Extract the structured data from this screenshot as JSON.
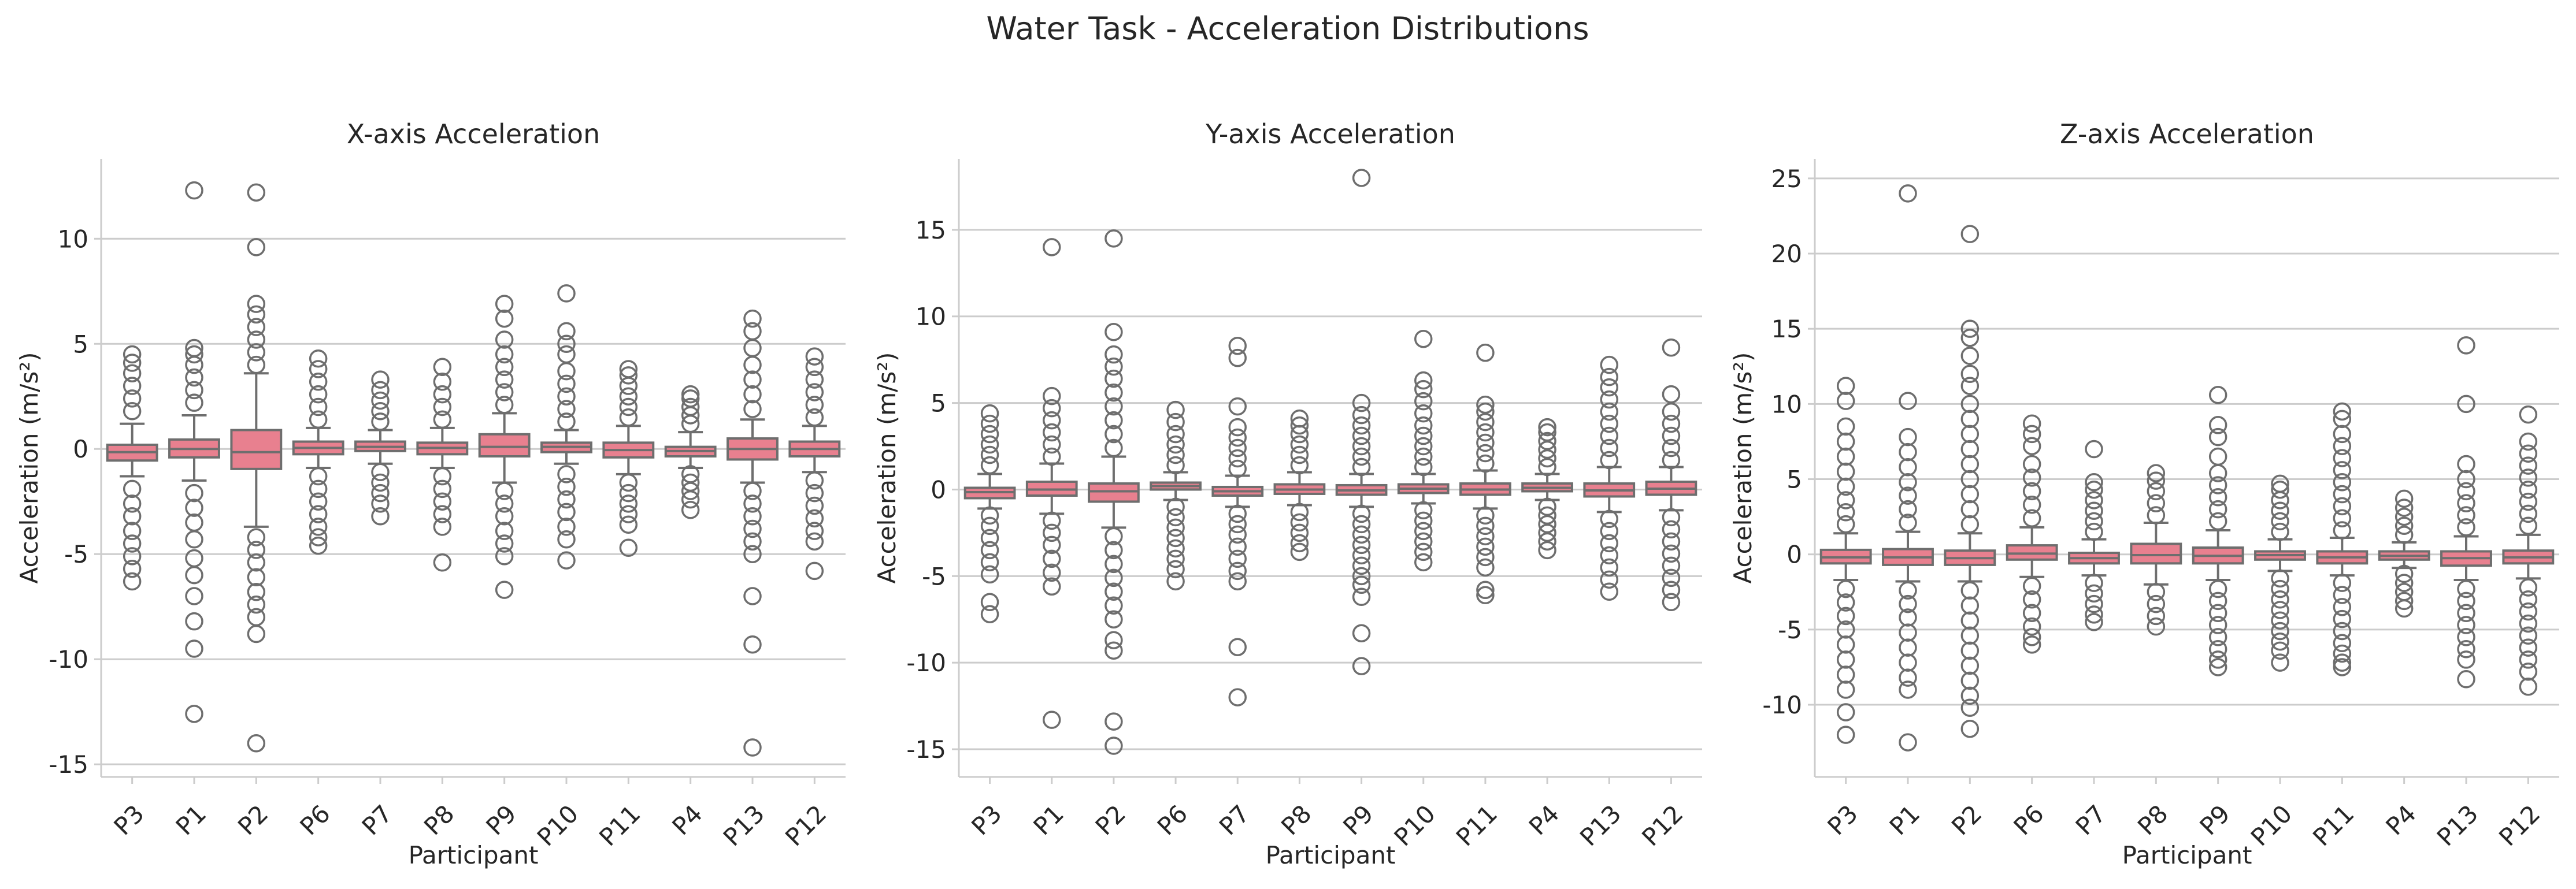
{
  "figure": {
    "title": "Water Task - Acceleration Distributions"
  },
  "colors": {
    "box_fill": "#e8808f",
    "box_edge": "#6e6e6e",
    "grid": "#cccccc",
    "text": "#262626"
  },
  "chart_data": [
    {
      "type": "box",
      "title": "X-axis Acceleration",
      "xlabel": "Participant",
      "ylabel": "Acceleration (m/s²)",
      "ylim": [
        -15.6,
        13.8
      ],
      "yticks": [
        -15,
        -10,
        -5,
        0,
        5,
        10
      ],
      "grid": true,
      "categories": [
        "P3",
        "P1",
        "P2",
        "P6",
        "P7",
        "P8",
        "P9",
        "P10",
        "P11",
        "P4",
        "P13",
        "P12"
      ],
      "boxes": [
        {
          "q1": -0.55,
          "median": -0.15,
          "q3": 0.2,
          "whisker_low": -1.3,
          "whisker_high": 1.2,
          "fliers_high": [
            1.8,
            2.4,
            3.0,
            3.6,
            4.1,
            4.5
          ],
          "fliers_low": [
            -1.9,
            -2.6,
            -3.2,
            -3.9,
            -4.5,
            -5.1,
            -5.7,
            -6.3
          ]
        },
        {
          "q1": -0.4,
          "median": 0.0,
          "q3": 0.45,
          "whisker_low": -1.5,
          "whisker_high": 1.6,
          "fliers_high": [
            2.2,
            2.8,
            3.4,
            4.0,
            4.5,
            4.8,
            12.3
          ],
          "fliers_low": [
            -2.1,
            -2.8,
            -3.5,
            -4.3,
            -5.2,
            -6.0,
            -7.0,
            -8.2,
            -9.5,
            -12.6
          ]
        },
        {
          "q1": -0.95,
          "median": -0.15,
          "q3": 0.9,
          "whisker_low": -3.7,
          "whisker_high": 3.6,
          "fliers_high": [
            4.0,
            4.6,
            5.2,
            5.8,
            6.4,
            6.9,
            9.6,
            12.2
          ],
          "fliers_low": [
            -4.2,
            -4.8,
            -5.4,
            -6.1,
            -6.8,
            -7.4,
            -8.0,
            -8.8,
            -14.0
          ]
        },
        {
          "q1": -0.25,
          "median": 0.05,
          "q3": 0.35,
          "whisker_low": -0.9,
          "whisker_high": 1.0,
          "fliers_high": [
            1.4,
            2.0,
            2.6,
            3.2,
            3.8,
            4.3
          ],
          "fliers_low": [
            -1.3,
            -1.9,
            -2.5,
            -3.1,
            -3.7,
            -4.2,
            -4.6
          ]
        },
        {
          "q1": -0.1,
          "median": 0.1,
          "q3": 0.35,
          "whisker_low": -0.7,
          "whisker_high": 0.9,
          "fliers_high": [
            1.3,
            1.8,
            2.3,
            2.8,
            3.3
          ],
          "fliers_low": [
            -1.1,
            -1.6,
            -2.1,
            -2.6,
            -3.2
          ]
        },
        {
          "q1": -0.25,
          "median": 0.05,
          "q3": 0.3,
          "whisker_low": -0.9,
          "whisker_high": 1.0,
          "fliers_high": [
            1.4,
            2.0,
            2.6,
            3.2,
            3.9
          ],
          "fliers_low": [
            -1.3,
            -1.9,
            -2.5,
            -3.1,
            -3.7,
            -5.4
          ]
        },
        {
          "q1": -0.35,
          "median": 0.1,
          "q3": 0.7,
          "whisker_low": -1.6,
          "whisker_high": 1.7,
          "fliers_high": [
            2.1,
            2.7,
            3.3,
            3.9,
            4.5,
            5.2,
            6.2,
            6.9
          ],
          "fliers_low": [
            -2.0,
            -2.6,
            -3.2,
            -3.9,
            -4.5,
            -5.1,
            -6.7
          ]
        },
        {
          "q1": -0.15,
          "median": 0.1,
          "q3": 0.3,
          "whisker_low": -0.7,
          "whisker_high": 0.9,
          "fliers_high": [
            1.3,
            1.9,
            2.5,
            3.1,
            3.7,
            4.5,
            5.0,
            5.6,
            7.4
          ],
          "fliers_low": [
            -1.2,
            -1.8,
            -2.4,
            -3.0,
            -3.7,
            -4.3,
            -5.3
          ]
        },
        {
          "q1": -0.4,
          "median": -0.05,
          "q3": 0.3,
          "whisker_low": -1.2,
          "whisker_high": 1.1,
          "fliers_high": [
            1.5,
            2.0,
            2.5,
            3.0,
            3.5,
            3.8
          ],
          "fliers_low": [
            -1.6,
            -2.1,
            -2.6,
            -3.1,
            -3.6,
            -4.7
          ]
        },
        {
          "q1": -0.35,
          "median": -0.1,
          "q3": 0.1,
          "whisker_low": -0.9,
          "whisker_high": 0.8,
          "fliers_high": [
            1.2,
            1.6,
            2.0,
            2.4,
            2.6
          ],
          "fliers_low": [
            -1.2,
            -1.6,
            -2.0,
            -2.4,
            -2.9
          ]
        },
        {
          "q1": -0.5,
          "median": 0.0,
          "q3": 0.5,
          "whisker_low": -1.6,
          "whisker_high": 1.4,
          "fliers_high": [
            1.9,
            2.6,
            3.3,
            4.0,
            4.8,
            5.6,
            6.2
          ],
          "fliers_low": [
            -2.0,
            -2.6,
            -3.2,
            -3.8,
            -4.4,
            -5.0,
            -7.0,
            -9.3,
            -14.2
          ]
        },
        {
          "q1": -0.35,
          "median": 0.0,
          "q3": 0.35,
          "whisker_low": -1.1,
          "whisker_high": 1.1,
          "fliers_high": [
            1.5,
            2.1,
            2.7,
            3.3,
            3.9,
            4.4
          ],
          "fliers_low": [
            -1.5,
            -2.1,
            -2.7,
            -3.3,
            -3.9,
            -4.4,
            -5.8
          ]
        }
      ]
    },
    {
      "type": "box",
      "title": "Y-axis Acceleration",
      "xlabel": "Participant",
      "ylabel": "Acceleration (m/s²)",
      "ylim": [
        -16.6,
        19.1
      ],
      "yticks": [
        -15,
        -10,
        -5,
        0,
        5,
        10,
        15
      ],
      "grid": true,
      "categories": [
        "P3",
        "P1",
        "P2",
        "P6",
        "P7",
        "P8",
        "P9",
        "P10",
        "P11",
        "P4",
        "P13",
        "P12"
      ],
      "boxes": [
        {
          "q1": -0.5,
          "median": -0.15,
          "q3": 0.1,
          "whisker_low": -1.1,
          "whisker_high": 0.9,
          "fliers_high": [
            1.4,
            2.0,
            2.6,
            3.2,
            3.8,
            4.4
          ],
          "fliers_low": [
            -1.5,
            -2.1,
            -2.8,
            -3.5,
            -4.2,
            -4.9,
            -6.5,
            -7.2
          ]
        },
        {
          "q1": -0.35,
          "median": 0.0,
          "q3": 0.45,
          "whisker_low": -1.4,
          "whisker_high": 1.5,
          "fliers_high": [
            1.9,
            2.6,
            3.3,
            4.0,
            4.7,
            5.4,
            14.0
          ],
          "fliers_low": [
            -1.8,
            -2.5,
            -3.2,
            -4.0,
            -4.8,
            -5.6,
            -13.3
          ]
        },
        {
          "q1": -0.7,
          "median": -0.1,
          "q3": 0.35,
          "whisker_low": -2.2,
          "whisker_high": 1.9,
          "fliers_high": [
            2.4,
            3.2,
            4.0,
            4.8,
            5.6,
            6.4,
            7.1,
            7.8,
            9.1,
            14.5
          ],
          "fliers_low": [
            -2.7,
            -3.5,
            -4.3,
            -5.1,
            -5.9,
            -6.7,
            -7.5,
            -8.7,
            -9.3,
            -13.4,
            -14.8
          ]
        },
        {
          "q1": 0.0,
          "median": 0.2,
          "q3": 0.4,
          "whisker_low": -0.6,
          "whisker_high": 1.0,
          "fliers_high": [
            1.4,
            2.0,
            2.6,
            3.2,
            3.9,
            4.6
          ],
          "fliers_low": [
            -1.0,
            -1.6,
            -2.2,
            -2.8,
            -3.4,
            -4.0,
            -4.6,
            -5.3
          ]
        },
        {
          "q1": -0.35,
          "median": -0.1,
          "q3": 0.15,
          "whisker_low": -1.0,
          "whisker_high": 0.8,
          "fliers_high": [
            1.2,
            1.8,
            2.4,
            3.0,
            3.6,
            4.8,
            7.6,
            8.3
          ],
          "fliers_low": [
            -1.4,
            -2.0,
            -2.6,
            -3.3,
            -4.0,
            -4.7,
            -5.3,
            -9.1,
            -12.0
          ]
        },
        {
          "q1": -0.25,
          "median": 0.0,
          "q3": 0.3,
          "whisker_low": -0.9,
          "whisker_high": 1.0,
          "fliers_high": [
            1.4,
            2.0,
            2.6,
            3.2,
            3.7,
            4.1
          ],
          "fliers_low": [
            -1.3,
            -1.9,
            -2.5,
            -3.1,
            -3.6
          ]
        },
        {
          "q1": -0.3,
          "median": -0.05,
          "q3": 0.25,
          "whisker_low": -1.0,
          "whisker_high": 0.9,
          "fliers_high": [
            1.3,
            1.9,
            2.5,
            3.1,
            3.7,
            4.3,
            5.0,
            18.0
          ],
          "fliers_low": [
            -1.4,
            -2.0,
            -2.6,
            -3.2,
            -3.8,
            -4.4,
            -5.0,
            -5.5,
            -6.2,
            -8.3,
            -10.2
          ]
        },
        {
          "q1": -0.2,
          "median": 0.05,
          "q3": 0.3,
          "whisker_low": -0.8,
          "whisker_high": 0.9,
          "fliers_high": [
            1.3,
            1.9,
            2.5,
            3.1,
            3.7,
            4.4,
            5.1,
            5.8,
            6.3,
            8.7
          ],
          "fliers_low": [
            -1.2,
            -1.8,
            -2.4,
            -3.0,
            -3.6,
            -4.2
          ]
        },
        {
          "q1": -0.3,
          "median": 0.0,
          "q3": 0.35,
          "whisker_low": -1.1,
          "whisker_high": 1.1,
          "fliers_high": [
            1.5,
            2.1,
            2.7,
            3.3,
            3.9,
            4.5,
            4.9,
            7.9
          ],
          "fliers_low": [
            -1.5,
            -2.1,
            -2.7,
            -3.3,
            -3.9,
            -4.5,
            -5.8,
            -6.1
          ]
        },
        {
          "q1": -0.1,
          "median": 0.1,
          "q3": 0.35,
          "whisker_low": -0.6,
          "whisker_high": 0.9,
          "fliers_high": [
            1.3,
            1.8,
            2.3,
            2.8,
            3.3,
            3.6
          ],
          "fliers_low": [
            -1.0,
            -1.5,
            -2.0,
            -2.5,
            -3.0,
            -3.5
          ]
        },
        {
          "q1": -0.4,
          "median": -0.05,
          "q3": 0.35,
          "whisker_low": -1.3,
          "whisker_high": 1.3,
          "fliers_high": [
            1.7,
            2.4,
            3.1,
            3.8,
            4.5,
            5.2,
            5.9,
            6.5,
            7.2
          ],
          "fliers_low": [
            -1.7,
            -2.4,
            -3.1,
            -3.8,
            -4.5,
            -5.2,
            -5.9
          ]
        },
        {
          "q1": -0.3,
          "median": 0.05,
          "q3": 0.45,
          "whisker_low": -1.2,
          "whisker_high": 1.3,
          "fliers_high": [
            1.7,
            2.4,
            3.1,
            3.8,
            4.5,
            5.5,
            8.2
          ],
          "fliers_low": [
            -1.6,
            -2.3,
            -3.0,
            -3.7,
            -4.4,
            -5.1,
            -5.8,
            -6.5
          ]
        }
      ]
    },
    {
      "type": "box",
      "title": "Z-axis Acceleration",
      "xlabel": "Participant",
      "ylabel": "Acceleration (m/s²)",
      "ylim": [
        -14.8,
        26.3
      ],
      "yticks": [
        -10,
        -5,
        0,
        5,
        10,
        15,
        20,
        25
      ],
      "grid": true,
      "categories": [
        "P3",
        "P1",
        "P2",
        "P6",
        "P7",
        "P8",
        "P9",
        "P10",
        "P11",
        "P4",
        "P13",
        "P12"
      ],
      "boxes": [
        {
          "q1": -0.6,
          "median": -0.2,
          "q3": 0.3,
          "whisker_low": -1.7,
          "whisker_high": 1.4,
          "fliers_high": [
            2.0,
            2.8,
            3.6,
            4.5,
            5.5,
            6.5,
            7.5,
            8.5,
            10.2,
            11.2
          ],
          "fliers_low": [
            -2.3,
            -3.2,
            -4.1,
            -5.0,
            -6.0,
            -7.0,
            -8.0,
            -9.0,
            -10.5,
            -12.0
          ]
        },
        {
          "q1": -0.7,
          "median": -0.2,
          "q3": 0.35,
          "whisker_low": -1.8,
          "whisker_high": 1.5,
          "fliers_high": [
            2.1,
            3.0,
            3.9,
            4.8,
            5.8,
            6.8,
            7.8,
            10.2,
            24.0
          ],
          "fliers_low": [
            -2.4,
            -3.3,
            -4.2,
            -5.2,
            -6.2,
            -7.2,
            -8.2,
            -9.0,
            -12.5
          ]
        },
        {
          "q1": -0.7,
          "median": -0.25,
          "q3": 0.25,
          "whisker_low": -1.8,
          "whisker_high": 1.4,
          "fliers_high": [
            2.0,
            3.0,
            4.0,
            5.0,
            6.0,
            7.0,
            8.0,
            9.0,
            10.0,
            11.2,
            12.0,
            13.2,
            14.4,
            15.0,
            21.3
          ],
          "fliers_low": [
            -2.4,
            -3.4,
            -4.4,
            -5.4,
            -6.4,
            -7.4,
            -8.4,
            -9.4,
            -10.2,
            -11.6
          ]
        },
        {
          "q1": -0.35,
          "median": 0.05,
          "q3": 0.6,
          "whisker_low": -1.5,
          "whisker_high": 1.8,
          "fliers_high": [
            2.4,
            3.3,
            4.2,
            5.1,
            6.0,
            7.2,
            8.0,
            8.7
          ],
          "fliers_low": [
            -2.1,
            -3.0,
            -3.9,
            -4.8,
            -5.5,
            -6.0
          ]
        },
        {
          "q1": -0.6,
          "median": -0.25,
          "q3": 0.1,
          "whisker_low": -1.4,
          "whisker_high": 1.0,
          "fliers_high": [
            1.5,
            2.2,
            2.9,
            3.6,
            4.3,
            4.8,
            7.0
          ],
          "fliers_low": [
            -1.9,
            -2.6,
            -3.3,
            -4.0,
            -4.5
          ]
        },
        {
          "q1": -0.6,
          "median": -0.05,
          "q3": 0.7,
          "whisker_low": -2.0,
          "whisker_high": 2.1,
          "fliers_high": [
            2.6,
            3.4,
            4.2,
            4.9,
            5.4
          ],
          "fliers_low": [
            -2.5,
            -3.3,
            -4.1,
            -4.8
          ]
        },
        {
          "q1": -0.6,
          "median": -0.1,
          "q3": 0.45,
          "whisker_low": -1.7,
          "whisker_high": 1.6,
          "fliers_high": [
            2.2,
            3.0,
            3.8,
            4.6,
            5.4,
            6.5,
            7.8,
            8.6,
            10.6
          ],
          "fliers_low": [
            -2.3,
            -3.1,
            -3.9,
            -4.7,
            -5.5,
            -6.3,
            -7.0,
            -7.5
          ]
        },
        {
          "q1": -0.35,
          "median": -0.05,
          "q3": 0.2,
          "whisker_low": -1.1,
          "whisker_high": 1.0,
          "fliers_high": [
            1.5,
            2.2,
            2.9,
            3.6,
            4.3,
            4.7
          ],
          "fliers_low": [
            -1.6,
            -2.3,
            -3.0,
            -3.7,
            -4.4,
            -5.1,
            -5.8,
            -6.4,
            -7.2
          ]
        },
        {
          "q1": -0.6,
          "median": -0.2,
          "q3": 0.2,
          "whisker_low": -1.4,
          "whisker_high": 1.1,
          "fliers_high": [
            1.6,
            2.4,
            3.2,
            4.0,
            4.8,
            5.6,
            6.4,
            7.2,
            8.0,
            9.0,
            9.5
          ],
          "fliers_low": [
            -1.9,
            -2.7,
            -3.5,
            -4.3,
            -5.1,
            -5.9,
            -6.6,
            -7.2,
            -7.5
          ]
        },
        {
          "q1": -0.35,
          "median": -0.1,
          "q3": 0.2,
          "whisker_low": -0.9,
          "whisker_high": 0.8,
          "fliers_high": [
            1.3,
            1.9,
            2.5,
            3.1,
            3.7
          ],
          "fliers_low": [
            -1.3,
            -1.9,
            -2.5,
            -3.1,
            -3.6
          ]
        },
        {
          "q1": -0.75,
          "median": -0.25,
          "q3": 0.2,
          "whisker_low": -1.7,
          "whisker_high": 1.2,
          "fliers_high": [
            1.8,
            2.6,
            3.4,
            4.2,
            5.0,
            6.0,
            10.0,
            13.9
          ],
          "fliers_low": [
            -2.3,
            -3.1,
            -3.9,
            -4.7,
            -5.5,
            -6.3,
            -7.0,
            -8.3
          ]
        },
        {
          "q1": -0.6,
          "median": -0.2,
          "q3": 0.25,
          "whisker_low": -1.6,
          "whisker_high": 1.3,
          "fliers_high": [
            1.9,
            2.7,
            3.5,
            4.3,
            5.1,
            5.9,
            6.7,
            7.5,
            9.3
          ],
          "fliers_low": [
            -2.2,
            -3.0,
            -3.8,
            -4.6,
            -5.4,
            -6.2,
            -7.0,
            -7.8,
            -8.8
          ]
        }
      ]
    }
  ]
}
